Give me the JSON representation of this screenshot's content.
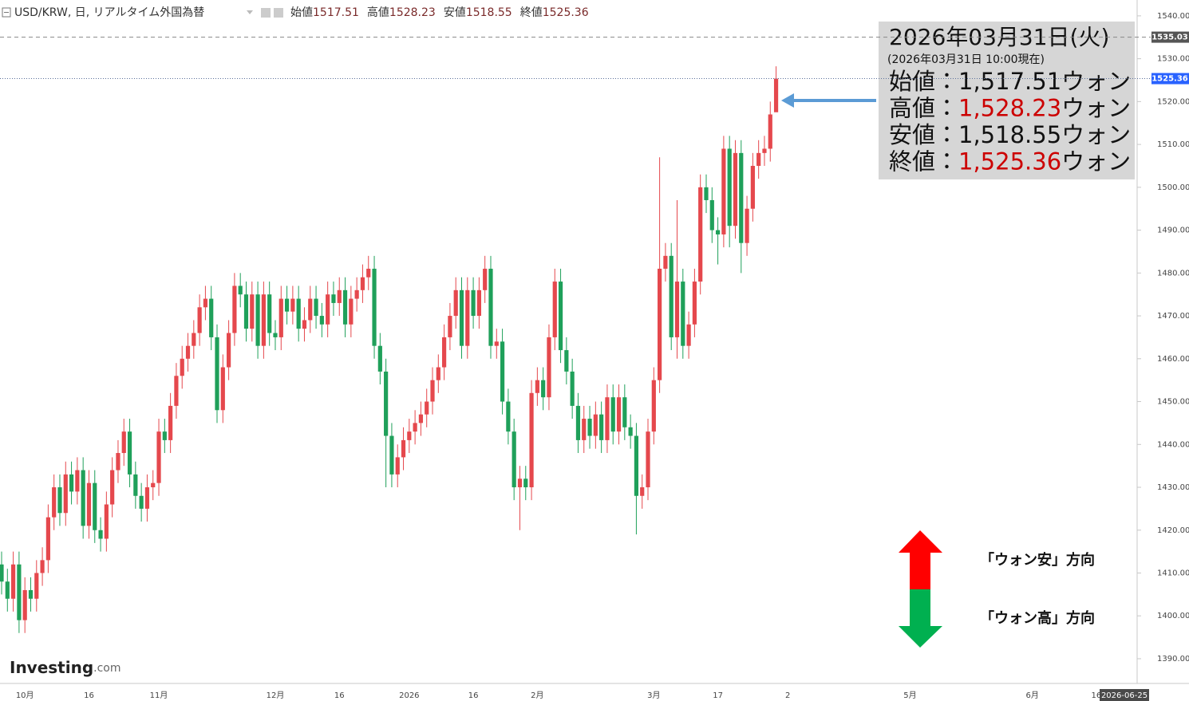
{
  "header": {
    "symbol": "USD/KRW, 日, リアルタイム外国為替",
    "ohlc_labels": [
      "始値",
      "高値",
      "安値",
      "終値"
    ]
  },
  "chart_data": {
    "type": "candlestick",
    "categories": [
      null,
      null,
      null,
      null,
      "10月",
      null,
      null,
      null,
      null,
      null,
      null,
      null,
      null,
      null,
      null,
      "16",
      null,
      null,
      null,
      null,
      null,
      null,
      null,
      null,
      null,
      null,
      null,
      "11月",
      null,
      null,
      null,
      null,
      null,
      null,
      null,
      null,
      null,
      null,
      null,
      null,
      null,
      null,
      null,
      null,
      null,
      null,
      null,
      "12月",
      null,
      null,
      null,
      null,
      null,
      null,
      null,
      null,
      null,
      null,
      "16",
      null,
      null,
      null,
      null,
      null,
      null,
      null,
      null,
      null,
      null,
      null,
      "2026",
      null,
      null,
      null,
      null,
      null,
      null,
      null,
      null,
      null,
      null,
      "16",
      null,
      null,
      null,
      null,
      null,
      null,
      null,
      null,
      null,
      null,
      "2月",
      null,
      null,
      null,
      null,
      null,
      null,
      null,
      null,
      null,
      null,
      null,
      null,
      null,
      null,
      null,
      null,
      null,
      null,
      null,
      "3月",
      null,
      null,
      null,
      null,
      null,
      null,
      null,
      null,
      null,
      null,
      "17",
      null,
      null,
      null,
      null,
      null,
      null,
      null,
      null,
      null,
      null,
      null,
      "2",
      null,
      null,
      null,
      null,
      null,
      null,
      null,
      null,
      null,
      null,
      null,
      null,
      null,
      null,
      null,
      null,
      null,
      null,
      null,
      null,
      "5月",
      null,
      null,
      null,
      null,
      null,
      null,
      null,
      null,
      null,
      null,
      null,
      null,
      null,
      null,
      null,
      null,
      null,
      null,
      null,
      null,
      "6月",
      null,
      null,
      null,
      null,
      null,
      null,
      null,
      null,
      null,
      null,
      "16",
      null,
      null,
      null,
      null,
      null,
      null,
      "2026-06-25"
    ],
    "open": [
      1412,
      1408,
      1404,
      1412,
      1399,
      1406,
      1404,
      1410,
      1413,
      1423,
      1430,
      1424,
      1433,
      1429,
      1434,
      1421,
      1431,
      1420,
      1418,
      1426,
      1434,
      1438,
      1443,
      1433,
      1428,
      1425,
      1430,
      1431,
      1443,
      1441,
      1449,
      1456,
      1460,
      1463,
      1466,
      1472,
      1474,
      1465,
      1448,
      1458,
      1466,
      1477,
      1475,
      1467,
      1475,
      1463,
      1475,
      1466,
      1465,
      1474,
      1471,
      1474,
      1467,
      1469,
      1474,
      1470,
      1468,
      1475,
      1473,
      1476,
      1468,
      1474,
      1476,
      1479,
      1481,
      1463,
      1457,
      1442,
      1433,
      1437,
      1441,
      1443,
      1445,
      1447,
      1450,
      1455,
      1458,
      1465,
      1470,
      1476,
      1463,
      1476,
      1470,
      1476,
      1481,
      1463,
      1464,
      1450,
      1443,
      1430,
      1432,
      1430,
      1452,
      1455,
      1451,
      1465,
      1478,
      1462,
      1457,
      1449,
      1441,
      1446,
      1442,
      1447,
      1441,
      1451,
      1443,
      1451,
      1444,
      1442,
      1428,
      1430,
      1443,
      1455,
      1481,
      1484,
      1465,
      1478,
      1463,
      1468,
      1478,
      1500,
      1497,
      1490,
      1489,
      1509,
      1491,
      1508,
      1487,
      1495,
      1505,
      1508,
      1509,
      1517.51,
      null,
      null,
      null,
      null,
      null,
      null,
      null,
      null,
      null,
      null,
      null,
      null,
      null,
      null,
      null,
      null,
      null,
      null,
      null,
      null,
      null,
      null,
      null,
      null,
      null,
      null,
      null,
      null,
      null,
      null,
      null,
      null,
      null,
      null,
      null,
      null,
      null,
      null,
      null,
      null,
      null,
      null,
      null,
      null,
      null,
      null,
      null,
      null,
      null,
      null,
      null,
      null,
      null,
      null,
      null,
      null,
      null,
      null,
      null,
      null,
      null,
      null
    ],
    "high": [
      1415,
      1411,
      1415,
      1415,
      1409,
      1409,
      1413,
      1416,
      1426,
      1433,
      1433,
      1436,
      1436,
      1437,
      1437,
      1434,
      1434,
      1423,
      1429,
      1437,
      1441,
      1446,
      1446,
      1436,
      1431,
      1433,
      1434,
      1446,
      1446,
      1452,
      1459,
      1463,
      1466,
      1469,
      1475,
      1477,
      1477,
      1468,
      1461,
      1469,
      1480,
      1480,
      1478,
      1478,
      1478,
      1478,
      1478,
      1469,
      1477,
      1477,
      1477,
      1477,
      1472,
      1477,
      1477,
      1473,
      1478,
      1478,
      1479,
      1479,
      1477,
      1479,
      1482,
      1484,
      1484,
      1466,
      1460,
      1445,
      1440,
      1444,
      1446,
      1448,
      1450,
      1453,
      1458,
      1461,
      1468,
      1473,
      1479,
      1479,
      1479,
      1479,
      1479,
      1484,
      1484,
      1467,
      1467,
      1453,
      1446,
      1435,
      1435,
      1455,
      1458,
      1458,
      1468,
      1481,
      1481,
      1465,
      1460,
      1452,
      1449,
      1449,
      1450,
      1450,
      1454,
      1454,
      1454,
      1454,
      1447,
      1445,
      1433,
      1446,
      1458,
      1507,
      1487,
      1487,
      1497,
      1481,
      1471,
      1481,
      1503,
      1503,
      1500,
      1493,
      1512,
      1512,
      1511,
      1511,
      1498,
      1508,
      1511,
      1512,
      1520,
      1528.23,
      null,
      null,
      null,
      null,
      null,
      null,
      null,
      null,
      null,
      null,
      null,
      null,
      null,
      null,
      null,
      null,
      null,
      null,
      null,
      null,
      null,
      null,
      null,
      null,
      null,
      null,
      null,
      null,
      null,
      null,
      null,
      null,
      null,
      null,
      null,
      null,
      null,
      null,
      null,
      null,
      null,
      null,
      null,
      null,
      null,
      null,
      null,
      null,
      null,
      null,
      null,
      null,
      null,
      null,
      null,
      null,
      null,
      null,
      null,
      null,
      null,
      null
    ],
    "low": [
      1405,
      1401,
      1401,
      1396,
      1396,
      1401,
      1401,
      1407,
      1410,
      1420,
      1421,
      1421,
      1426,
      1426,
      1418,
      1418,
      1417,
      1415,
      1415,
      1423,
      1431,
      1435,
      1430,
      1425,
      1422,
      1422,
      1427,
      1428,
      1438,
      1438,
      1446,
      1453,
      1457,
      1460,
      1463,
      1469,
      1462,
      1445,
      1445,
      1455,
      1463,
      1472,
      1464,
      1464,
      1460,
      1460,
      1463,
      1462,
      1462,
      1468,
      1468,
      1464,
      1464,
      1466,
      1467,
      1465,
      1465,
      1470,
      1470,
      1465,
      1465,
      1471,
      1473,
      1476,
      1460,
      1454,
      1430,
      1430,
      1430,
      1434,
      1438,
      1440,
      1442,
      1444,
      1447,
      1452,
      1455,
      1462,
      1467,
      1460,
      1460,
      1467,
      1467,
      1473,
      1460,
      1460,
      1447,
      1440,
      1427,
      1420,
      1427,
      1427,
      1449,
      1448,
      1448,
      1462,
      1459,
      1454,
      1446,
      1438,
      1438,
      1439,
      1439,
      1438,
      1438,
      1440,
      1440,
      1441,
      1439,
      1419,
      1425,
      1427,
      1440,
      1452,
      1478,
      1462,
      1460,
      1460,
      1460,
      1465,
      1475,
      1494,
      1487,
      1482,
      1486,
      1486,
      1488,
      1480,
      1484,
      1492,
      1502,
      1505,
      1506,
      1518.55,
      null,
      null,
      null,
      null,
      null,
      null,
      null,
      null,
      null,
      null,
      null,
      null,
      null,
      null,
      null,
      null,
      null,
      null,
      null,
      null,
      null,
      null,
      null,
      null,
      null,
      null,
      null,
      null,
      null,
      null,
      null,
      null,
      null,
      null,
      null,
      null,
      null,
      null,
      null,
      null,
      null,
      null,
      null,
      null,
      null,
      null,
      null,
      null,
      null,
      null,
      null,
      null,
      null,
      null,
      null,
      null,
      null,
      null,
      null,
      null,
      null,
      null
    ],
    "close": [
      1408,
      1404,
      1412,
      1399,
      1406,
      1404,
      1410,
      1413,
      1423,
      1430,
      1424,
      1433,
      1429,
      1434,
      1421,
      1431,
      1420,
      1418,
      1426,
      1434,
      1438,
      1443,
      1433,
      1428,
      1425,
      1430,
      1431,
      1443,
      1441,
      1449,
      1456,
      1460,
      1463,
      1466,
      1472,
      1474,
      1465,
      1448,
      1458,
      1466,
      1477,
      1475,
      1467,
      1475,
      1463,
      1475,
      1466,
      1465,
      1474,
      1471,
      1474,
      1467,
      1469,
      1474,
      1470,
      1468,
      1475,
      1473,
      1476,
      1468,
      1474,
      1476,
      1479,
      1481,
      1463,
      1457,
      1442,
      1433,
      1437,
      1441,
      1443,
      1445,
      1447,
      1450,
      1455,
      1458,
      1465,
      1470,
      1476,
      1463,
      1476,
      1470,
      1476,
      1481,
      1463,
      1464,
      1450,
      1443,
      1430,
      1432,
      1430,
      1452,
      1455,
      1451,
      1465,
      1478,
      1462,
      1457,
      1449,
      1441,
      1446,
      1442,
      1447,
      1441,
      1451,
      1443,
      1451,
      1444,
      1442,
      1428,
      1430,
      1443,
      1455,
      1481,
      1484,
      1465,
      1478,
      1463,
      1468,
      1478,
      1500,
      1497,
      1490,
      1489,
      1509,
      1491,
      1508,
      1487,
      1495,
      1505,
      1508,
      1509,
      1517,
      1525.36,
      null,
      null,
      null,
      null,
      null,
      null,
      null,
      null,
      null,
      null,
      null,
      null,
      null,
      null,
      null,
      null,
      null,
      null,
      null,
      null,
      null,
      null,
      null,
      null,
      null,
      null,
      null,
      null,
      null,
      null,
      null,
      null,
      null,
      null,
      null,
      null,
      null,
      null,
      null,
      null,
      null,
      null,
      null,
      null,
      null,
      null,
      null,
      null,
      null,
      null,
      null,
      null,
      null,
      null,
      null,
      null,
      null,
      null,
      null,
      null,
      null,
      null
    ],
    "up_color": "#e5484d",
    "down_color": "#1fa05a",
    "ylim": [
      1384.6,
      1543.7
    ],
    "yticks": [
      {
        "value": 1390,
        "label": "1390.00"
      },
      {
        "value": 1400,
        "label": "1400.00"
      },
      {
        "value": 1410,
        "label": "1410.00"
      },
      {
        "value": 1420,
        "label": "1420.00"
      },
      {
        "value": 1430,
        "label": "1430.00"
      },
      {
        "value": 1440,
        "label": "1440.00"
      },
      {
        "value": 1450,
        "label": "1450.00"
      },
      {
        "value": 1460,
        "label": "1460.00"
      },
      {
        "value": 1470,
        "label": "1470.00"
      },
      {
        "value": 1480,
        "label": "1480.00"
      },
      {
        "value": 1490,
        "label": "1490.00"
      },
      {
        "value": 1500,
        "label": "1500.00"
      },
      {
        "value": 1510,
        "label": "1510.00"
      },
      {
        "value": 1520,
        "label": "1520.00"
      },
      {
        "value": 1530,
        "label": "1530.00"
      },
      {
        "value": 1540,
        "label": "1540.00"
      }
    ],
    "reference_lines": [
      {
        "value": 1535.03,
        "style": "dashed",
        "color": "#888888",
        "label_bg": "#555555"
      },
      {
        "value": 1525.36,
        "style": "dotted",
        "color": "#5a6f9a",
        "label_bg": "#2962ff"
      }
    ]
  },
  "info_box": {
    "date": "2026年03月31日(火)",
    "asof": "(2026年03月31日 10:00現在)",
    "rows": [
      {
        "label": "始値：",
        "value": 1517.51,
        "value_label": "1,517.51",
        "unit": "ウォン",
        "color": "#111111"
      },
      {
        "label": "高値：",
        "value": 1528.23,
        "value_label": "1,528.23",
        "unit": "ウォン",
        "color": "#cc0000"
      },
      {
        "label": "安値：",
        "value": 1518.55,
        "value_label": "1,518.55",
        "unit": "ウォン",
        "color": "#111111"
      },
      {
        "label": "終値：",
        "value": 1525.36,
        "value_label": "1,525.36",
        "unit": "ウォン",
        "color": "#cc0000"
      }
    ]
  },
  "annotations": {
    "up": "「ウォン安」方向",
    "down": "「ウォン高」方向"
  },
  "logo": {
    "main": "Investing",
    "suffix": ".com"
  }
}
